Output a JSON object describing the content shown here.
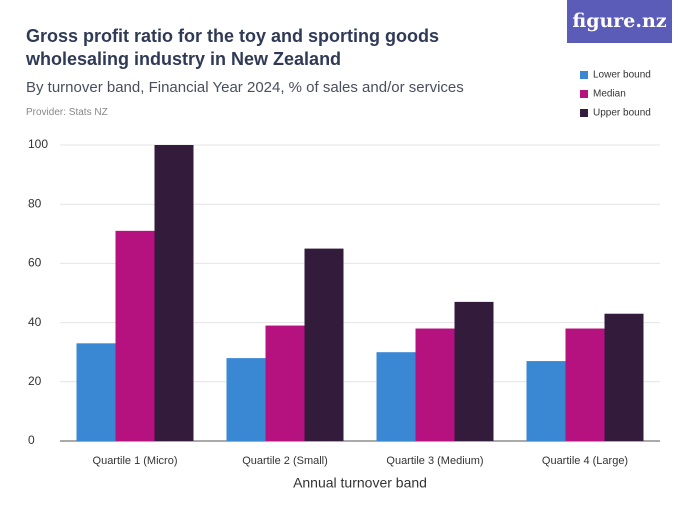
{
  "brand": "figure.nz",
  "chart_data": {
    "type": "bar",
    "title": "Gross profit ratio for the toy and sporting goods wholesaling industry in New Zealand",
    "subtitle": "By turnover band, Financial Year 2024, % of sales and/or services",
    "provider": "Provider: Stats NZ",
    "x_label": "Annual turnover band",
    "categories": [
      "Quartile 1 (Micro)",
      "Quartile 2 (Small)",
      "Quartile 3 (Medium)",
      "Quartile 4 (Large)"
    ],
    "series": [
      {
        "name": "Lower bound",
        "color": "#3a87d4",
        "values": [
          33,
          28,
          30,
          27
        ]
      },
      {
        "name": "Median",
        "color": "#b5127f",
        "values": [
          71,
          39,
          38,
          38
        ]
      },
      {
        "name": "Upper bound",
        "color": "#331b3b",
        "values": [
          100,
          65,
          47,
          43
        ]
      }
    ],
    "ylim": [
      0,
      100
    ],
    "yticks": [
      0,
      20,
      40,
      60,
      80,
      100
    ],
    "grid": true,
    "legend": "top-right"
  }
}
